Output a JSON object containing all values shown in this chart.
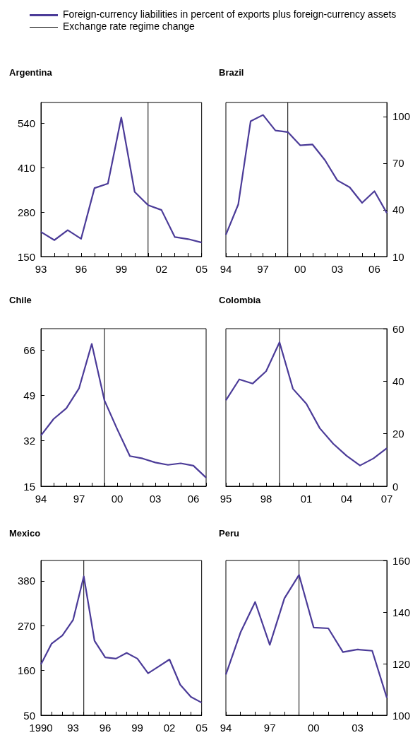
{
  "chart_data": [
    {
      "type": "line",
      "title": "Argentina",
      "legend": "top",
      "grid": false,
      "marker": "none",
      "line_style": "solid",
      "x": [
        1993,
        1994,
        1995,
        1996,
        1997,
        1998,
        1999,
        2000,
        2001,
        2002,
        2003,
        2004,
        2005
      ],
      "series": [
        {
          "name": "Foreign-currency liabilities in percent of exports plus foreign-currency assets",
          "color": "#4b3b98",
          "values": [
            222,
            198,
            227,
            202,
            350,
            363,
            556,
            339,
            300,
            286,
            207,
            201,
            191
          ]
        }
      ],
      "xlim": [
        1993,
        2005
      ],
      "xticks": [
        {
          "value": 1993,
          "label": "93"
        },
        {
          "value": 1994,
          "label": null
        },
        {
          "value": 1995,
          "label": null
        },
        {
          "value": 1996,
          "label": "96"
        },
        {
          "value": 1997,
          "label": null
        },
        {
          "value": 1998,
          "label": null
        },
        {
          "value": 1999,
          "label": "99"
        },
        {
          "value": 2000,
          "label": null
        },
        {
          "value": 2001,
          "label": null
        },
        {
          "value": 2002,
          "label": "02"
        },
        {
          "value": 2003,
          "label": null
        },
        {
          "value": 2004,
          "label": null
        },
        {
          "value": 2005,
          "label": "05"
        }
      ],
      "ylim": [
        150,
        600
      ],
      "yticks": [
        150,
        280,
        410,
        540
      ],
      "ref_lines": [
        {
          "axis": "x",
          "value": 2001,
          "label": "Exchange rate regime change",
          "color": "#000000",
          "line_style": "solid"
        }
      ]
    },
    {
      "type": "line",
      "title": "Brazil",
      "grid": false,
      "marker": "none",
      "line_style": "solid",
      "x": [
        1994,
        1995,
        1996,
        1997,
        1998,
        1999,
        2000,
        2001,
        2002,
        2003,
        2004,
        2005,
        2006,
        2007
      ],
      "series": [
        {
          "color": "#4b3b98",
          "axis": "y2",
          "values": [
            24,
            43.5,
            97,
            101,
            91,
            90,
            81.5,
            82,
            72,
            59,
            54.5,
            44.5,
            52,
            38
          ]
        }
      ],
      "xlim": [
        1994,
        2007
      ],
      "xticks": [
        {
          "value": 1994,
          "label": "94"
        },
        {
          "value": 1995,
          "label": null
        },
        {
          "value": 1996,
          "label": null
        },
        {
          "value": 1997,
          "label": "97"
        },
        {
          "value": 1998,
          "label": null
        },
        {
          "value": 1999,
          "label": null
        },
        {
          "value": 2000,
          "label": "00"
        },
        {
          "value": 2001,
          "label": null
        },
        {
          "value": 2002,
          "label": null
        },
        {
          "value": 2003,
          "label": "03"
        },
        {
          "value": 2004,
          "label": null
        },
        {
          "value": 2005,
          "label": null
        },
        {
          "value": 2006,
          "label": "06"
        },
        {
          "value": 2007,
          "label": null
        }
      ],
      "y2lim": [
        10,
        109
      ],
      "y2ticks": [
        10,
        40,
        70,
        100
      ],
      "ref_lines": [
        {
          "axis": "x",
          "value": 1999,
          "color": "#000000",
          "line_style": "solid"
        }
      ]
    },
    {
      "type": "line",
      "title": "Chile",
      "grid": false,
      "marker": "none",
      "line_style": "solid",
      "x": [
        1994,
        1995,
        1996,
        1997,
        1998,
        1999,
        2000,
        2001,
        2002,
        2003,
        2004,
        2005,
        2006,
        2007
      ],
      "series": [
        {
          "color": "#4b3b98",
          "values": [
            34,
            40.2,
            44.2,
            51.7,
            68.3,
            47.1,
            36.4,
            26.3,
            25.4,
            23.9,
            23,
            23.6,
            22.7,
            18.2
          ]
        }
      ],
      "xlim": [
        1994,
        2007
      ],
      "xticks": [
        {
          "value": 1994,
          "label": "94"
        },
        {
          "value": 1995,
          "label": null
        },
        {
          "value": 1996,
          "label": null
        },
        {
          "value": 1997,
          "label": "97"
        },
        {
          "value": 1998,
          "label": null
        },
        {
          "value": 1999,
          "label": null
        },
        {
          "value": 2000,
          "label": "00"
        },
        {
          "value": 2001,
          "label": null
        },
        {
          "value": 2002,
          "label": null
        },
        {
          "value": 2003,
          "label": "03"
        },
        {
          "value": 2004,
          "label": null
        },
        {
          "value": 2005,
          "label": null
        },
        {
          "value": 2006,
          "label": "06"
        },
        {
          "value": 2007,
          "label": null
        }
      ],
      "ylim": [
        15,
        74
      ],
      "yticks": [
        15,
        32,
        49,
        66
      ],
      "ref_lines": [
        {
          "axis": "x",
          "value": 1999,
          "color": "#000000",
          "line_style": "solid"
        }
      ]
    },
    {
      "type": "line",
      "title": "Colombia",
      "grid": false,
      "marker": "none",
      "line_style": "solid",
      "x": [
        1995,
        1996,
        1997,
        1998,
        1999,
        2000,
        2001,
        2002,
        2003,
        2004,
        2005,
        2006,
        2007
      ],
      "series": [
        {
          "color": "#4b3b98",
          "axis": "y2",
          "values": [
            32.7,
            40.7,
            39.1,
            43.8,
            54.8,
            37.1,
            31.4,
            22.1,
            16.2,
            11.6,
            7.9,
            10.6,
            14.5
          ]
        }
      ],
      "xlim": [
        1995,
        2007
      ],
      "xticks": [
        {
          "value": 1995,
          "label": "95"
        },
        {
          "value": 1996,
          "label": null
        },
        {
          "value": 1997,
          "label": null
        },
        {
          "value": 1998,
          "label": "98"
        },
        {
          "value": 1999,
          "label": null
        },
        {
          "value": 2000,
          "label": null
        },
        {
          "value": 2001,
          "label": "01"
        },
        {
          "value": 2002,
          "label": null
        },
        {
          "value": 2003,
          "label": null
        },
        {
          "value": 2004,
          "label": "04"
        },
        {
          "value": 2005,
          "label": null
        },
        {
          "value": 2006,
          "label": null
        },
        {
          "value": 2007,
          "label": "07"
        }
      ],
      "y2lim": [
        0,
        60
      ],
      "y2ticks": [
        0,
        20,
        40,
        60
      ],
      "ref_lines": [
        {
          "axis": "x",
          "value": 1999,
          "color": "#000000",
          "line_style": "solid"
        }
      ]
    },
    {
      "type": "line",
      "title": "Mexico",
      "grid": false,
      "marker": "none",
      "line_style": "solid",
      "x": [
        1990,
        1991,
        1992,
        1993,
        1994,
        1995,
        1996,
        1997,
        1998,
        1999,
        2000,
        2001,
        2002,
        2003,
        2004,
        2005
      ],
      "series": [
        {
          "color": "#4b3b98",
          "values": [
            175,
            226,
            246,
            284,
            391,
            233,
            192,
            189,
            203,
            189,
            153,
            170,
            187,
            125,
            95,
            81
          ]
        }
      ],
      "xlim": [
        1990,
        2005
      ],
      "xticks": [
        {
          "value": 1990,
          "label": "1990"
        },
        {
          "value": 1991,
          "label": null
        },
        {
          "value": 1992,
          "label": null
        },
        {
          "value": 1993,
          "label": "93"
        },
        {
          "value": 1994,
          "label": null
        },
        {
          "value": 1995,
          "label": null
        },
        {
          "value": 1996,
          "label": "96"
        },
        {
          "value": 1997,
          "label": null
        },
        {
          "value": 1998,
          "label": null
        },
        {
          "value": 1999,
          "label": "99"
        },
        {
          "value": 2000,
          "label": null
        },
        {
          "value": 2001,
          "label": null
        },
        {
          "value": 2002,
          "label": "02"
        },
        {
          "value": 2003,
          "label": null
        },
        {
          "value": 2004,
          "label": null
        },
        {
          "value": 2005,
          "label": "05"
        }
      ],
      "ylim": [
        50,
        430
      ],
      "yticks": [
        50,
        160,
        270,
        380
      ],
      "ref_lines": [
        {
          "axis": "x",
          "value": 1994,
          "color": "#000000",
          "line_style": "solid"
        }
      ]
    },
    {
      "type": "line",
      "title": "Peru",
      "grid": false,
      "marker": "none",
      "line_style": "solid",
      "x": [
        1994,
        1995,
        1996,
        1997,
        1998,
        1999,
        2000,
        2001,
        2002,
        2003,
        2004,
        2005
      ],
      "series": [
        {
          "color": "#4b3b98",
          "axis": "y2",
          "values": [
            115.8,
            132.1,
            143.9,
            127.3,
            145.3,
            154.4,
            134,
            133.7,
            124.5,
            125.5,
            125,
            106.8
          ]
        }
      ],
      "xlim": [
        1994,
        2005
      ],
      "xticks": [
        {
          "value": 1994,
          "label": "94"
        },
        {
          "value": 1995,
          "label": null
        },
        {
          "value": 1996,
          "label": null
        },
        {
          "value": 1997,
          "label": "97"
        },
        {
          "value": 1998,
          "label": null
        },
        {
          "value": 1999,
          "label": null
        },
        {
          "value": 2000,
          "label": "00"
        },
        {
          "value": 2001,
          "label": null
        },
        {
          "value": 2002,
          "label": null
        },
        {
          "value": 2003,
          "label": "03"
        },
        {
          "value": 2004,
          "label": null
        },
        {
          "value": 2005,
          "label": null
        }
      ],
      "y2lim": [
        100,
        160
      ],
      "y2ticks": [
        100,
        120,
        140,
        160
      ],
      "ref_lines": [
        {
          "axis": "x",
          "value": 1999,
          "color": "#000000",
          "line_style": "solid"
        }
      ]
    }
  ]
}
